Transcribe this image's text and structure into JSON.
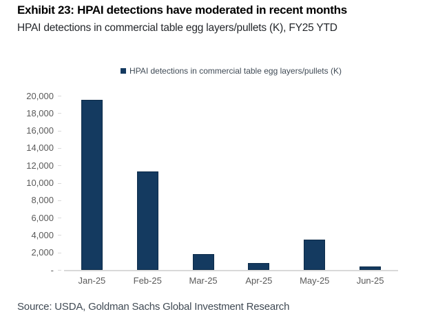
{
  "header": {
    "title": "Exhibit 23: HPAI detections have moderated in recent months",
    "subtitle": "HPAI detections in commercial table egg layers/pullets (K), FY25 YTD"
  },
  "chart_data": {
    "type": "bar",
    "title": "Exhibit 23: HPAI detections have moderated in recent months",
    "subtitle": "HPAI detections in commercial table egg layers/pullets (K), FY25 YTD",
    "legend": "HPAI detections in commercial table egg layers/pullets (K)",
    "legend_position": "top-center",
    "categories": [
      "Jan-25",
      "Feb-25",
      "Mar-25",
      "Apr-25",
      "May-25",
      "Jun-25"
    ],
    "values": [
      19500,
      11300,
      1800,
      800,
      3500,
      400
    ],
    "xlabel": "",
    "ylabel": "",
    "ylim": [
      0,
      20000
    ],
    "y_tick_step": 2000,
    "y_tick_labels": [
      "20,000",
      "18,000",
      "16,000",
      "14,000",
      "12,000",
      "10,000",
      "8,000",
      "6,000",
      "4,000",
      "2,000",
      "-"
    ],
    "grid": "off",
    "colors": {
      "bar": "#143a60",
      "bar_border": "#0c2b49",
      "axis": "#d9d9d9",
      "tick_label": "#595959",
      "legend_text": "#3f4a55"
    }
  },
  "footer": {
    "source": "Source: USDA, Goldman Sachs Global Investment Research"
  }
}
